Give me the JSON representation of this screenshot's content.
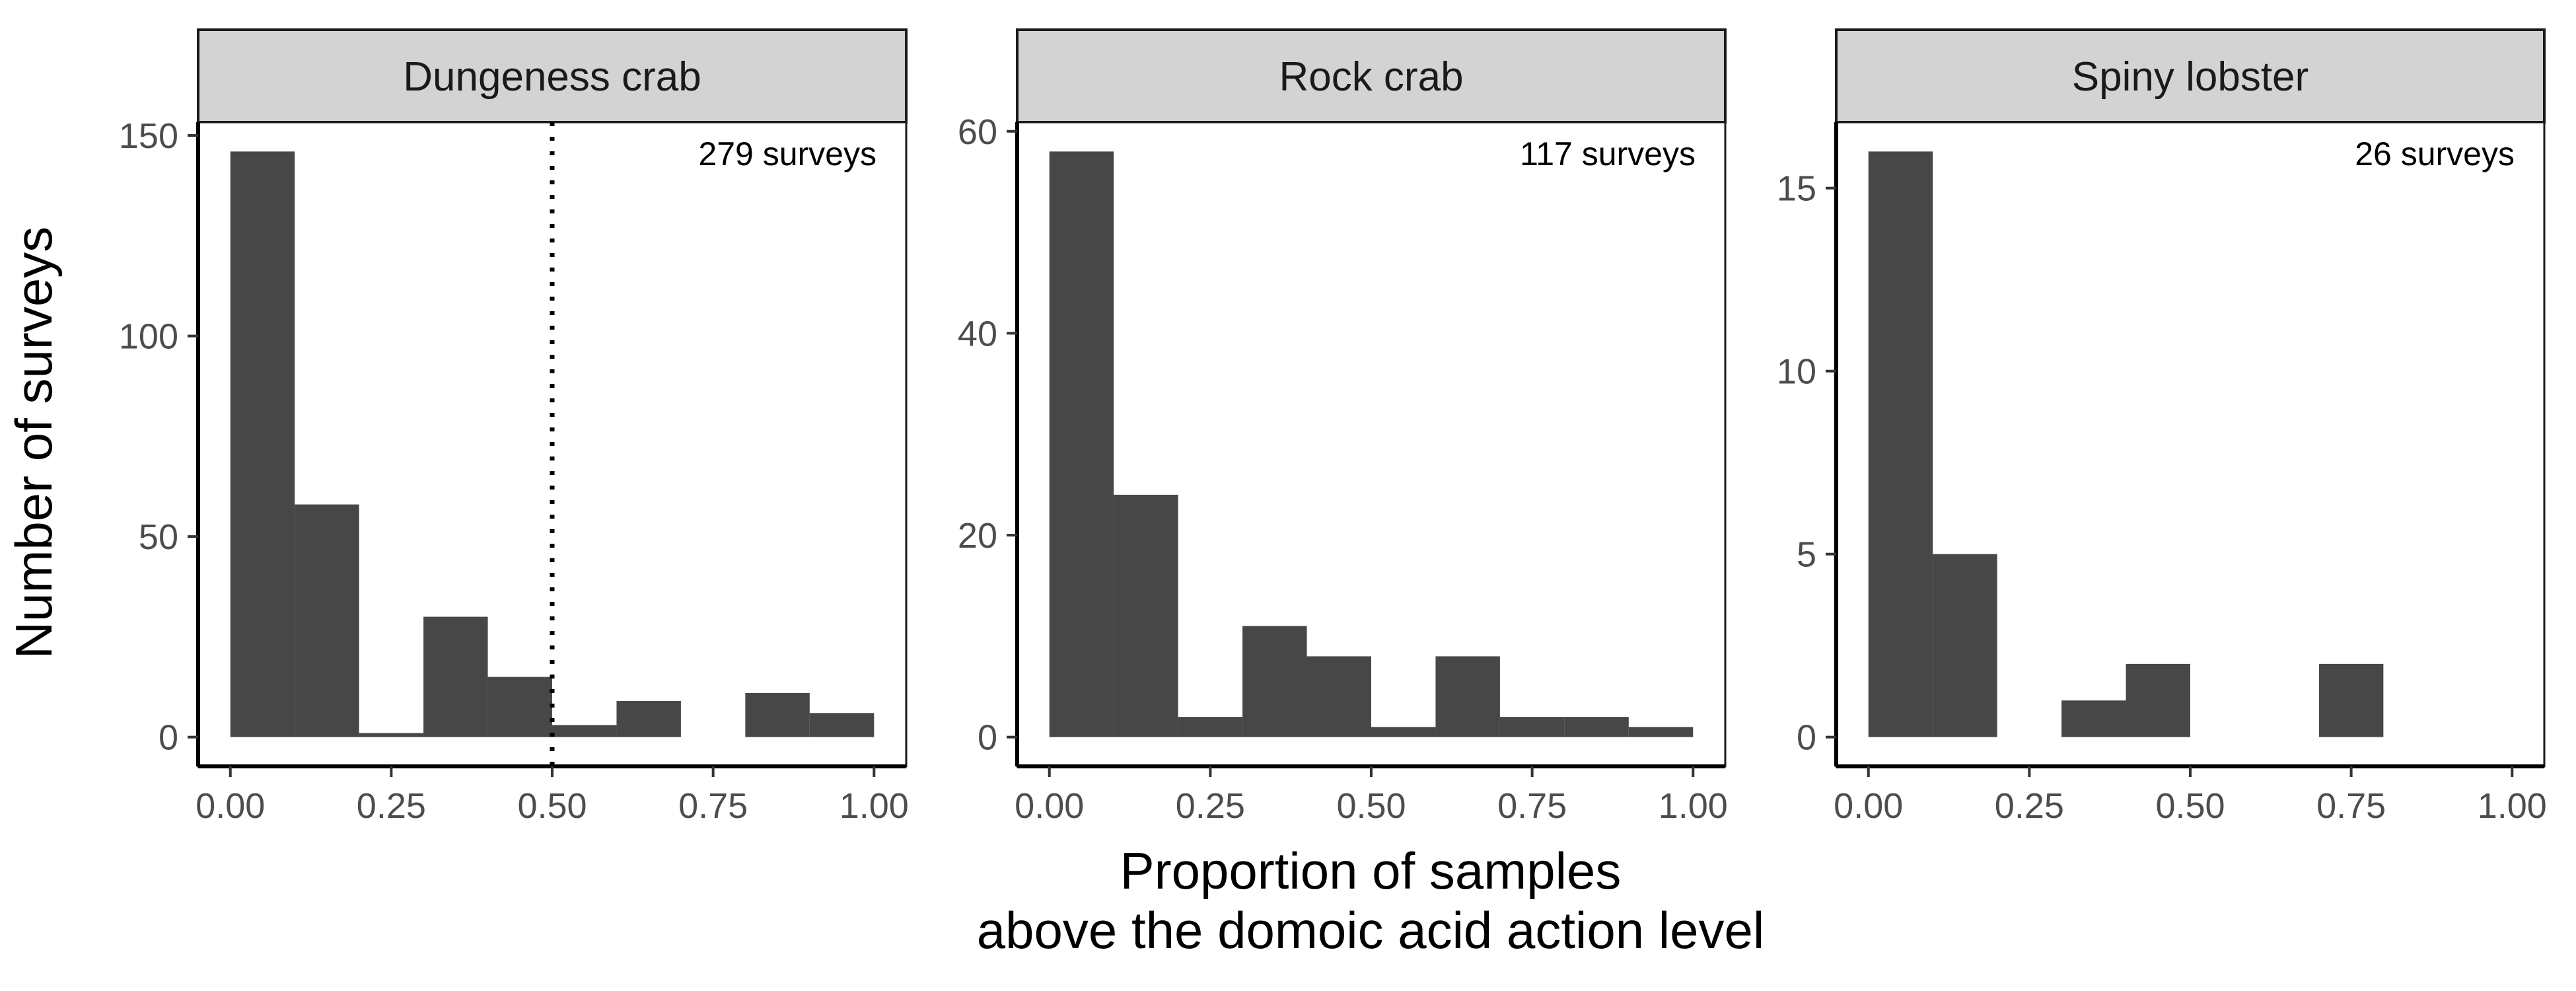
{
  "figure": {
    "ylabel": "Number of surveys",
    "xlabel_lines": [
      "Proportion of samples",
      "above the domoic acid action level"
    ]
  },
  "colors": {
    "bar": "#474747",
    "strip_fill": "#d3d3d3",
    "frame": "#1a1a1a",
    "axis_line": "#000000",
    "tick_text": "#4d4d4d"
  },
  "chart_data": [
    {
      "type": "bar",
      "title": "Dungeness crab",
      "annotation": "279 surveys",
      "bin_width": 0.1,
      "bin_starts": [
        0.0,
        0.1,
        0.2,
        0.3,
        0.4,
        0.5,
        0.6,
        0.7,
        0.8,
        0.9
      ],
      "values": [
        146,
        58,
        1,
        30,
        15,
        3,
        9,
        0,
        11,
        6
      ],
      "xlim": [
        -0.05,
        1.05
      ],
      "ylim": [
        -7.3,
        153.3
      ],
      "x_ticks": [
        0,
        0.25,
        0.5,
        0.75,
        1
      ],
      "x_tick_labels": [
        "0.00",
        "0.25",
        "0.50",
        "0.75",
        "1.00"
      ],
      "y_ticks": [
        0,
        50,
        100,
        150
      ],
      "y_tick_labels": [
        "0",
        "50",
        "100",
        "150"
      ],
      "reference_line": {
        "x": 0.5,
        "style": "dotted"
      },
      "grid": false
    },
    {
      "type": "bar",
      "title": "Rock crab",
      "annotation": "117 surveys",
      "bin_width": 0.1,
      "bin_starts": [
        0.0,
        0.1,
        0.2,
        0.3,
        0.4,
        0.5,
        0.6,
        0.7,
        0.8,
        0.9
      ],
      "values": [
        58,
        24,
        2,
        11,
        8,
        1,
        8,
        2,
        2,
        1
      ],
      "xlim": [
        -0.05,
        1.05
      ],
      "ylim": [
        -2.9,
        60.9
      ],
      "x_ticks": [
        0,
        0.25,
        0.5,
        0.75,
        1
      ],
      "x_tick_labels": [
        "0.00",
        "0.25",
        "0.50",
        "0.75",
        "1.00"
      ],
      "y_ticks": [
        0,
        20,
        40,
        60
      ],
      "y_tick_labels": [
        "0",
        "20",
        "40",
        "60"
      ],
      "grid": false
    },
    {
      "type": "bar",
      "title": "Spiny lobster",
      "annotation": "26 surveys",
      "bin_width": 0.1,
      "bin_starts": [
        0.0,
        0.1,
        0.2,
        0.3,
        0.4,
        0.5,
        0.6,
        0.7,
        0.8,
        0.9
      ],
      "values": [
        16,
        5,
        0,
        1,
        2,
        0,
        0,
        2,
        0,
        0
      ],
      "xlim": [
        -0.05,
        1.05
      ],
      "ylim": [
        -0.8,
        16.8
      ],
      "x_ticks": [
        0,
        0.25,
        0.5,
        0.75,
        1
      ],
      "x_tick_labels": [
        "0.00",
        "0.25",
        "0.50",
        "0.75",
        "1.00"
      ],
      "y_ticks": [
        0,
        5,
        10,
        15
      ],
      "y_tick_labels": [
        "0",
        "5",
        "10",
        "15"
      ],
      "grid": false
    }
  ]
}
